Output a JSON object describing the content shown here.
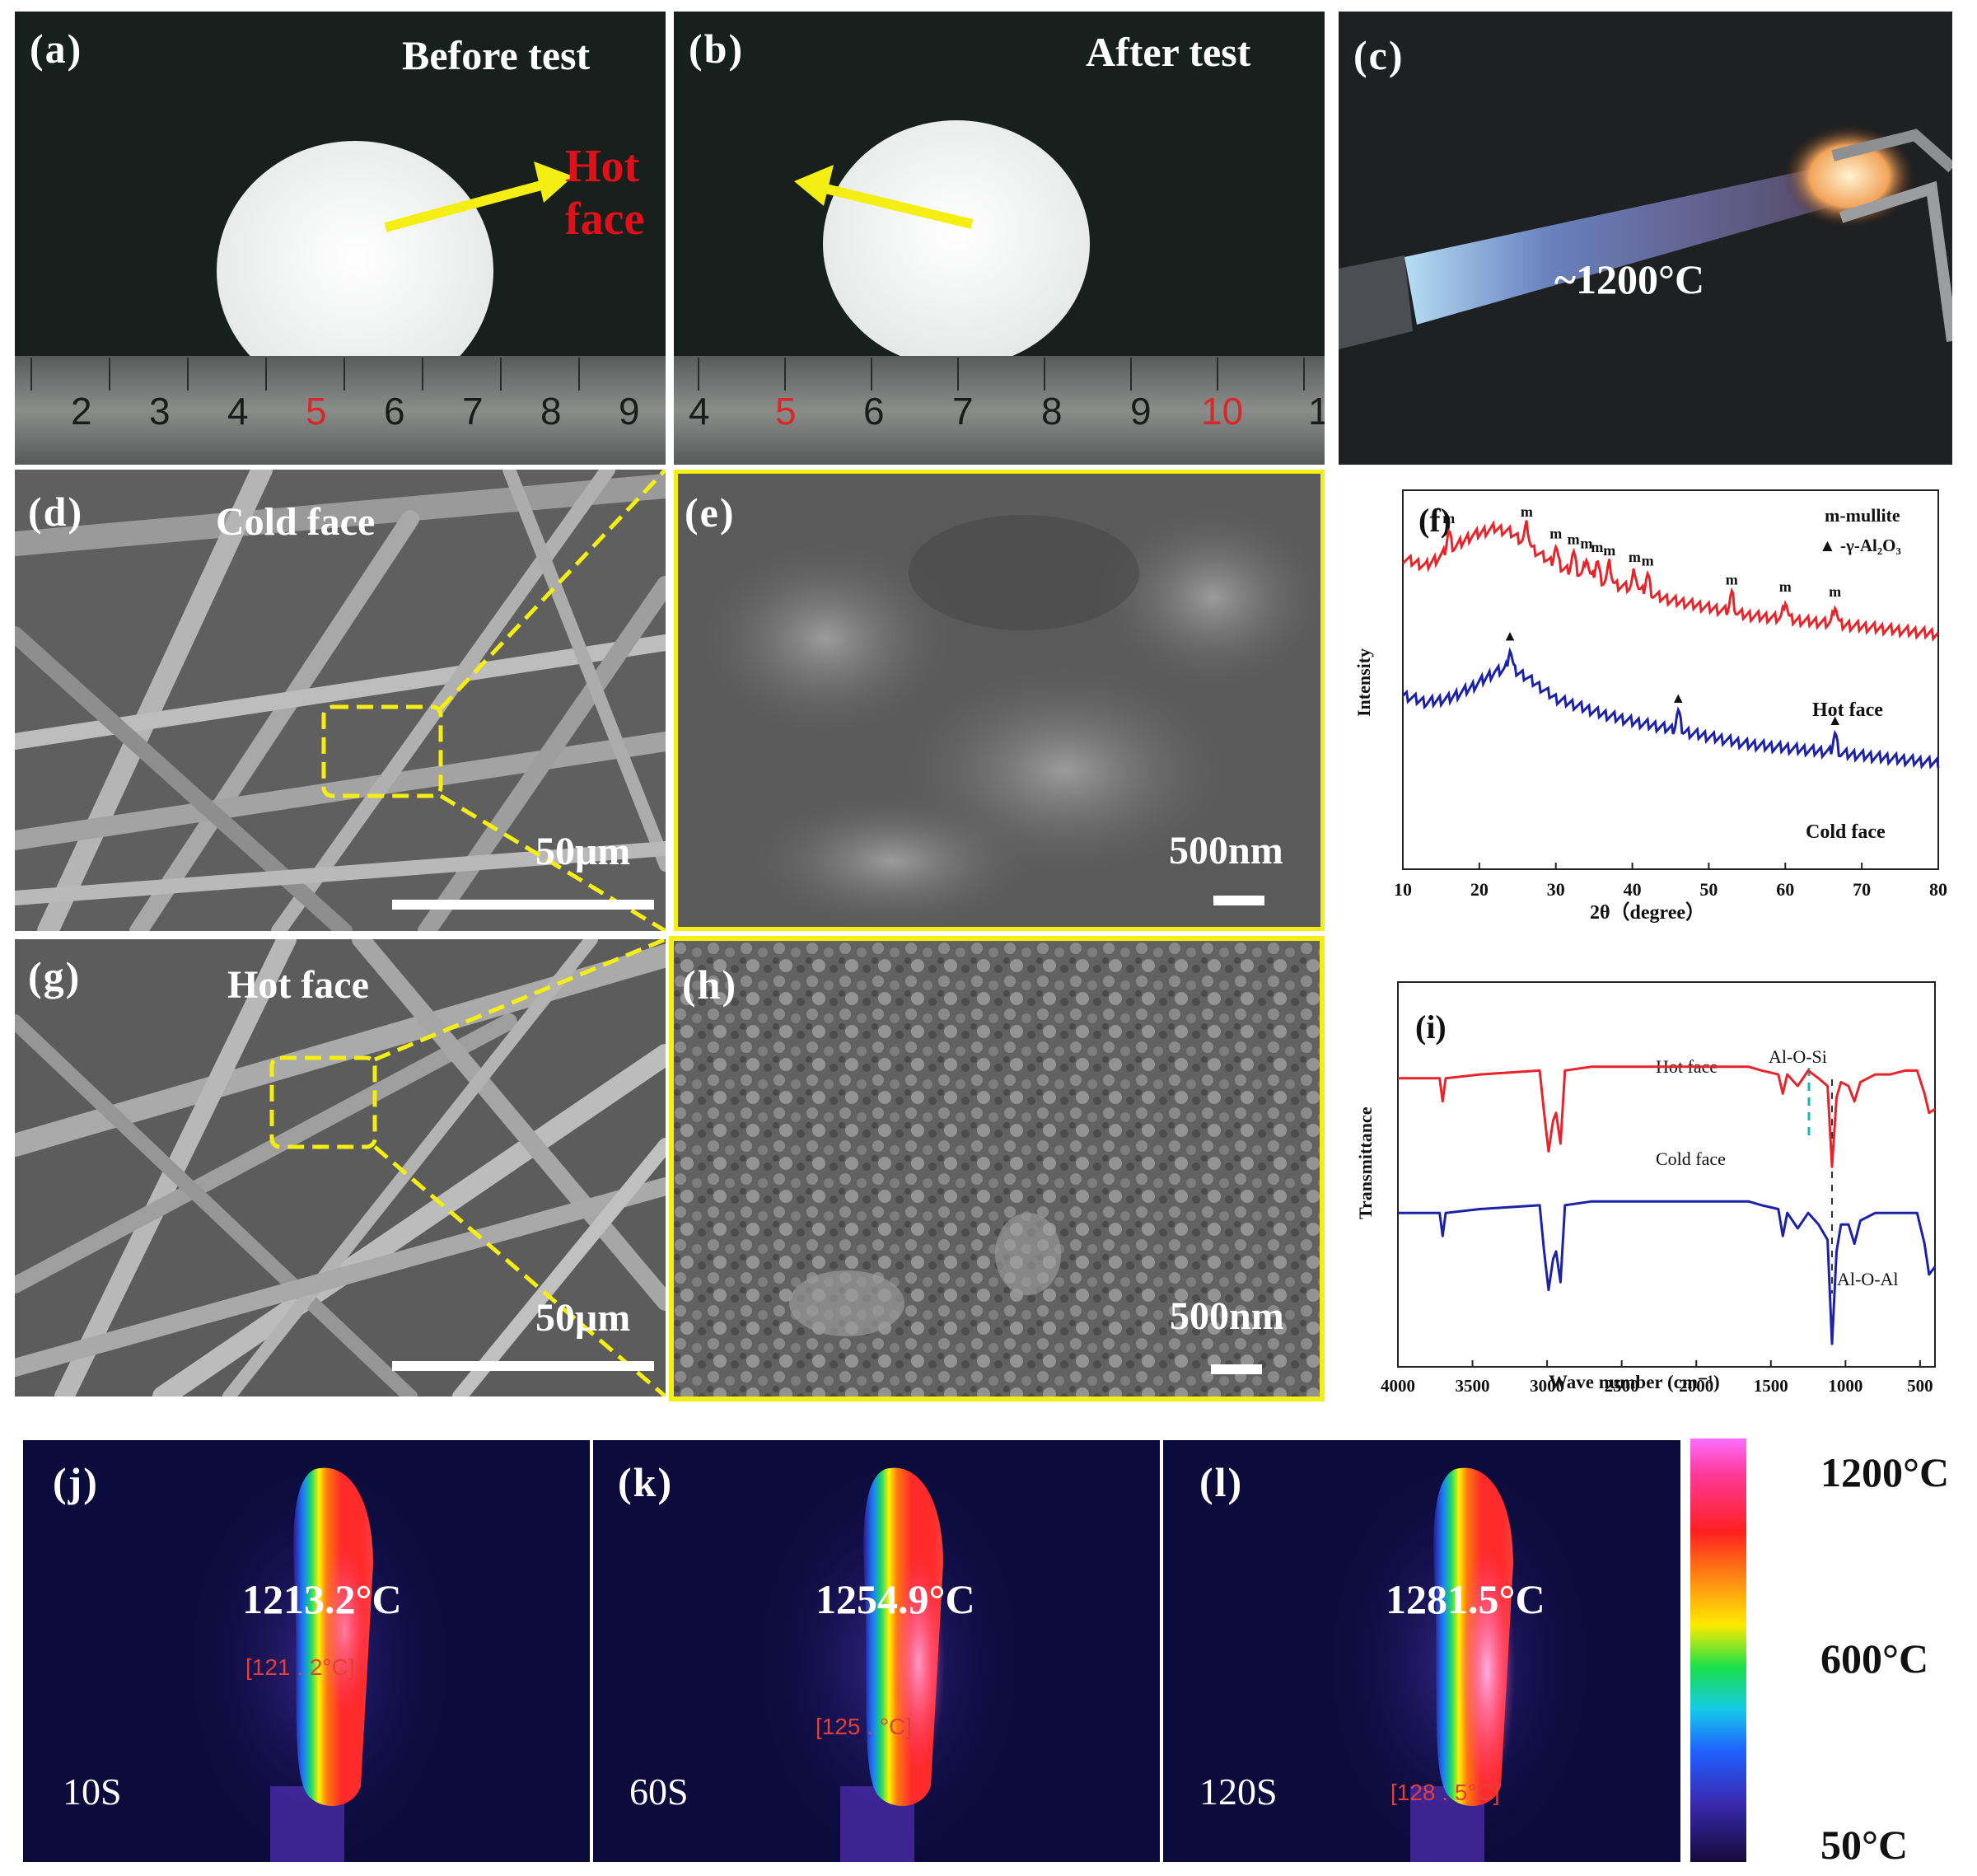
{
  "panels": {
    "a": {
      "label": "(a)",
      "caption": "Before test",
      "hot_face": "Hot face",
      "ruler": [
        "2",
        "3",
        "4",
        "5",
        "6",
        "7",
        "8",
        "9"
      ]
    },
    "b": {
      "label": "(b)",
      "caption": "After test",
      "ruler": [
        "4",
        "5",
        "6",
        "7",
        "8",
        "9",
        "10",
        "1"
      ]
    },
    "c": {
      "label": "(c)",
      "temp": "~1200°C"
    },
    "d": {
      "label": "(d)",
      "caption": "Cold face",
      "scale": "50μm"
    },
    "e": {
      "label": "(e)",
      "scale": "500nm"
    },
    "g": {
      "label": "(g)",
      "caption": "Hot face",
      "scale": "50μm"
    },
    "h": {
      "label": "(h)",
      "scale": "500nm"
    },
    "j": {
      "label": "(j)",
      "temp": "1213.2°C",
      "small": "[121 . 2°C]",
      "time": "10S"
    },
    "k": {
      "label": "(k)",
      "temp": "1254.9°C",
      "small": "[125 . °C]",
      "time": "60S"
    },
    "l": {
      "label": "(l)",
      "temp": "1281.5°C",
      "small": "[128 . 5°C]",
      "time": "120S"
    }
  },
  "colorbar": {
    "max": "1200°C",
    "mid": "600°C",
    "min": "50°C"
  },
  "chart_data": [
    {
      "id": "f",
      "type": "line",
      "label": "(f)",
      "xlabel": "2θ（degree）",
      "ylabel": "Intensity",
      "xlim": [
        10,
        80
      ],
      "xticks": [
        "10",
        "20",
        "30",
        "40",
        "50",
        "60",
        "70",
        "80"
      ],
      "legend": {
        "m": "m-mullite",
        "tri": "▲ -γ-Al₂O₃"
      },
      "series": [
        {
          "name": "Hot face",
          "color": "#e8232a",
          "x": [
            10,
            13,
            16,
            19,
            22,
            24,
            26,
            28,
            30,
            33,
            36,
            40,
            45,
            50,
            55,
            60,
            65,
            70,
            75,
            80
          ],
          "y": [
            0.82,
            0.8,
            0.84,
            0.88,
            0.9,
            0.89,
            0.86,
            0.83,
            0.8,
            0.78,
            0.76,
            0.74,
            0.71,
            0.69,
            0.67,
            0.66,
            0.65,
            0.64,
            0.63,
            0.62
          ],
          "peaks": [
            16,
            26.2,
            30,
            32.3,
            34,
            35.4,
            37,
            40.3,
            42,
            53,
            60,
            66.5
          ],
          "peak_label": "m"
        },
        {
          "name": "Cold face",
          "color": "#1c22a8",
          "x": [
            10,
            13,
            16,
            19,
            22,
            24,
            26,
            28,
            30,
            33,
            36,
            40,
            45,
            50,
            55,
            60,
            65,
            70,
            75,
            80
          ],
          "y": [
            0.46,
            0.44,
            0.45,
            0.48,
            0.52,
            0.53,
            0.51,
            0.48,
            0.45,
            0.43,
            0.41,
            0.39,
            0.37,
            0.35,
            0.33,
            0.32,
            0.31,
            0.3,
            0.29,
            0.28
          ],
          "peaks": [
            24,
            46,
            66.5
          ],
          "peak_label": "▲"
        }
      ]
    },
    {
      "id": "i",
      "type": "line",
      "label": "(i)",
      "xlabel": "Wave number (cm⁻¹)",
      "ylabel": "Transmittance",
      "xlim": [
        4000,
        400
      ],
      "xticks": [
        "4000",
        "3500",
        "3000",
        "2500",
        "2000",
        "1500",
        "1000",
        "500"
      ],
      "annotations": [
        "Al-O-Si",
        "Al-O-Al"
      ],
      "series": [
        {
          "name": "Hot face",
          "color": "#e8232a",
          "x": [
            4000,
            3720,
            3700,
            3680,
            3450,
            3050,
            3020,
            2990,
            2960,
            2940,
            2910,
            2880,
            2700,
            1650,
            1560,
            1450,
            1420,
            1390,
            1320,
            1250,
            1180,
            1120,
            1090,
            1060,
            1030,
            980,
            940,
            900,
            800,
            700,
            600,
            520,
            470,
            440,
            400
          ],
          "y": [
            0.75,
            0.75,
            0.69,
            0.75,
            0.76,
            0.77,
            0.66,
            0.56,
            0.64,
            0.66,
            0.58,
            0.77,
            0.78,
            0.78,
            0.77,
            0.76,
            0.71,
            0.76,
            0.73,
            0.77,
            0.75,
            0.73,
            0.52,
            0.7,
            0.74,
            0.73,
            0.69,
            0.74,
            0.76,
            0.76,
            0.77,
            0.77,
            0.71,
            0.66,
            0.67
          ]
        },
        {
          "name": "Cold face",
          "color": "#1c22a8",
          "x": [
            4000,
            3720,
            3700,
            3680,
            3450,
            3050,
            3020,
            2990,
            2960,
            2940,
            2910,
            2880,
            2700,
            1650,
            1560,
            1450,
            1420,
            1390,
            1320,
            1250,
            1180,
            1120,
            1090,
            1060,
            1030,
            980,
            940,
            900,
            800,
            700,
            600,
            520,
            470,
            440,
            400
          ],
          "y": [
            0.4,
            0.4,
            0.34,
            0.4,
            0.41,
            0.42,
            0.3,
            0.2,
            0.28,
            0.3,
            0.22,
            0.42,
            0.43,
            0.43,
            0.42,
            0.41,
            0.34,
            0.4,
            0.36,
            0.4,
            0.37,
            0.33,
            0.06,
            0.3,
            0.37,
            0.37,
            0.32,
            0.38,
            0.4,
            0.4,
            0.4,
            0.4,
            0.32,
            0.24,
            0.26
          ]
        }
      ]
    }
  ]
}
